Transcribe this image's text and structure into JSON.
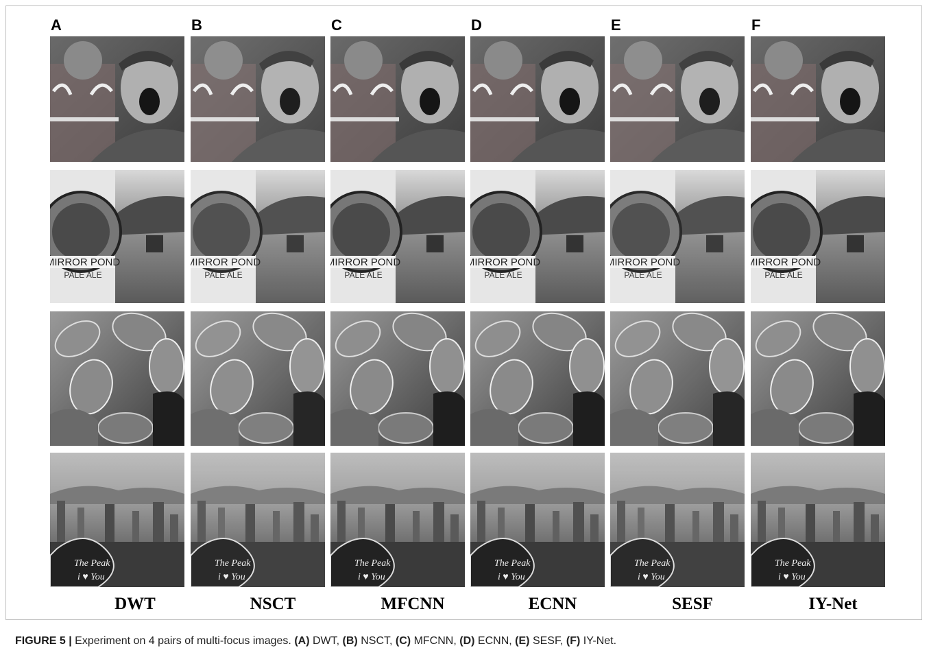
{
  "figure": {
    "columns": [
      {
        "letter": "A",
        "method": "DWT"
      },
      {
        "letter": "B",
        "method": "NSCT"
      },
      {
        "letter": "C",
        "method": "MFCNN"
      },
      {
        "letter": "D",
        "method": "ECNN"
      },
      {
        "letter": "E",
        "method": "SESF"
      },
      {
        "letter": "F",
        "method": "IY-Net"
      }
    ],
    "caption": {
      "label": "FIGURE 5 |",
      "text": "Experiment on 4 pairs of multi-focus images.",
      "items": [
        {
          "key": "(A)",
          "name": "DWT,"
        },
        {
          "key": "(B)",
          "name": "NSCT,"
        },
        {
          "key": "(C)",
          "name": "MFCNN,"
        },
        {
          "key": "(D)",
          "name": "ECNN,"
        },
        {
          "key": "(E)",
          "name": "SESF,"
        },
        {
          "key": "(F)",
          "name": "IY-Net."
        }
      ]
    }
  }
}
